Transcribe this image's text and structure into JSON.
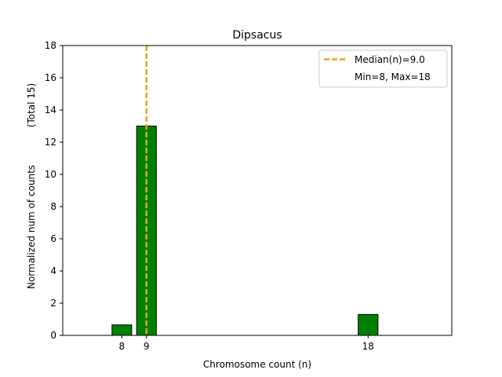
{
  "chart_data": {
    "type": "bar",
    "title": "Dipsacus",
    "xlabel": "Chromosome count (n)",
    "ylabel": "Normalized num of counts",
    "ylabel_note": "(Total 15)",
    "xlim": [
      5.6,
      21.4
    ],
    "ylim": [
      0,
      18
    ],
    "x_ticks": [
      8,
      9,
      18
    ],
    "y_ticks": [
      0,
      2,
      4,
      6,
      8,
      10,
      12,
      14,
      16,
      18
    ],
    "bar_width": 0.8,
    "bars": [
      {
        "x": 8,
        "value": 0.65
      },
      {
        "x": 9,
        "value": 13
      },
      {
        "x": 18,
        "value": 1.3
      }
    ],
    "median_line": {
      "x": 9.0,
      "label": "Median(n)=9.0"
    },
    "range_note": "Min=8, Max=18",
    "legend_position": "upper right",
    "grid": false,
    "colors": {
      "bar_fill": "#008000",
      "bar_edge": "#000000",
      "median": "#e8a317"
    }
  }
}
